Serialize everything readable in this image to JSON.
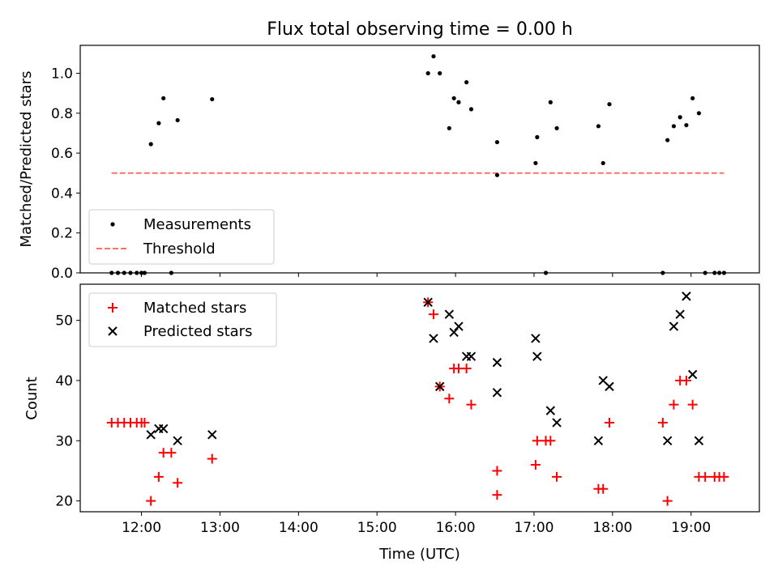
{
  "title": "Flux total observing time = 0.00 h",
  "chart_data": [
    {
      "type": "scatter",
      "ylabel": "Matched/Predicted stars",
      "xlim": [
        11.22,
        19.87
      ],
      "ylim": [
        0.0,
        1.14
      ],
      "yticks": [
        0.0,
        0.2,
        0.4,
        0.6,
        0.8,
        1.0
      ],
      "ytick_labels": [
        "0.0",
        "0.2",
        "0.4",
        "0.6",
        "0.8",
        "1.0"
      ],
      "grid": false,
      "legend_position": "lower-left",
      "series": [
        {
          "name": "Measurements",
          "marker": "dot",
          "color": "#000000",
          "points": [
            [
              11.62,
              0.0
            ],
            [
              11.7,
              0.0
            ],
            [
              11.78,
              0.0
            ],
            [
              11.86,
              0.0
            ],
            [
              11.94,
              0.0
            ],
            [
              12.0,
              0.0
            ],
            [
              12.04,
              0.0
            ],
            [
              12.12,
              0.645
            ],
            [
              12.22,
              0.75
            ],
            [
              12.28,
              0.875
            ],
            [
              12.38,
              0.0
            ],
            [
              12.46,
              0.765
            ],
            [
              12.9,
              0.87
            ],
            [
              15.65,
              1.0
            ],
            [
              15.72,
              1.085
            ],
            [
              15.8,
              1.0
            ],
            [
              15.92,
              0.725
            ],
            [
              15.98,
              0.875
            ],
            [
              16.04,
              0.855
            ],
            [
              16.14,
              0.955
            ],
            [
              16.2,
              0.82
            ],
            [
              16.53,
              0.655
            ],
            [
              16.53,
              0.49
            ],
            [
              17.02,
              0.55
            ],
            [
              17.04,
              0.68
            ],
            [
              17.15,
              0.0
            ],
            [
              17.21,
              0.855
            ],
            [
              17.29,
              0.725
            ],
            [
              17.82,
              0.735
            ],
            [
              17.88,
              0.55
            ],
            [
              17.96,
              0.845
            ],
            [
              18.64,
              0.0
            ],
            [
              18.7,
              0.665
            ],
            [
              18.78,
              0.735
            ],
            [
              18.86,
              0.78
            ],
            [
              18.94,
              0.74
            ],
            [
              19.02,
              0.875
            ],
            [
              19.1,
              0.8
            ],
            [
              19.18,
              0.0
            ],
            [
              19.3,
              0.0
            ],
            [
              19.36,
              0.0
            ],
            [
              19.42,
              0.0
            ]
          ]
        },
        {
          "name": "Threshold",
          "line_style": "dashed",
          "color": "#ff7070",
          "points": [
            [
              11.62,
              0.5
            ],
            [
              19.42,
              0.5
            ]
          ]
        }
      ]
    },
    {
      "type": "scatter",
      "xlabel": "Time (UTC)",
      "ylabel": "Count",
      "xlim": [
        11.22,
        19.87
      ],
      "ylim": [
        18.2,
        56.0
      ],
      "xticks": [
        12,
        13,
        14,
        15,
        16,
        17,
        18,
        19
      ],
      "xtick_labels": [
        "12:00",
        "13:00",
        "14:00",
        "15:00",
        "16:00",
        "17:00",
        "18:00",
        "19:00"
      ],
      "yticks": [
        20,
        30,
        40,
        50
      ],
      "ytick_labels": [
        "20",
        "30",
        "40",
        "50"
      ],
      "grid": false,
      "legend_position": "upper-left",
      "series": [
        {
          "name": "Matched stars",
          "marker": "plus",
          "color": "#ff0000",
          "points": [
            [
              11.62,
              33
            ],
            [
              11.7,
              33
            ],
            [
              11.78,
              33
            ],
            [
              11.86,
              33
            ],
            [
              11.94,
              33
            ],
            [
              12.0,
              33
            ],
            [
              12.04,
              33
            ],
            [
              12.12,
              20
            ],
            [
              12.22,
              24
            ],
            [
              12.28,
              28
            ],
            [
              12.38,
              28
            ],
            [
              12.46,
              23
            ],
            [
              12.9,
              27
            ],
            [
              15.65,
              53
            ],
            [
              15.72,
              51
            ],
            [
              15.8,
              39
            ],
            [
              15.92,
              37
            ],
            [
              15.98,
              42
            ],
            [
              16.04,
              42
            ],
            [
              16.14,
              42
            ],
            [
              16.2,
              36
            ],
            [
              16.53,
              25
            ],
            [
              16.53,
              21
            ],
            [
              17.02,
              26
            ],
            [
              17.04,
              30
            ],
            [
              17.15,
              30
            ],
            [
              17.21,
              30
            ],
            [
              17.29,
              24
            ],
            [
              17.82,
              22
            ],
            [
              17.88,
              22
            ],
            [
              17.96,
              33
            ],
            [
              18.64,
              33
            ],
            [
              18.7,
              20
            ],
            [
              18.78,
              36
            ],
            [
              18.86,
              40
            ],
            [
              18.94,
              40
            ],
            [
              19.02,
              36
            ],
            [
              19.1,
              24
            ],
            [
              19.18,
              24
            ],
            [
              19.3,
              24
            ],
            [
              19.36,
              24
            ],
            [
              19.42,
              24
            ]
          ]
        },
        {
          "name": "Predicted stars",
          "marker": "x",
          "color": "#000000",
          "points": [
            [
              12.12,
              31
            ],
            [
              12.22,
              32
            ],
            [
              12.28,
              32
            ],
            [
              12.46,
              30
            ],
            [
              12.9,
              31
            ],
            [
              15.65,
              53
            ],
            [
              15.72,
              47
            ],
            [
              15.8,
              39
            ],
            [
              15.92,
              51
            ],
            [
              15.98,
              48
            ],
            [
              16.04,
              49
            ],
            [
              16.14,
              44
            ],
            [
              16.2,
              44
            ],
            [
              16.53,
              43
            ],
            [
              16.53,
              38
            ],
            [
              17.02,
              47
            ],
            [
              17.04,
              44
            ],
            [
              17.21,
              35
            ],
            [
              17.29,
              33
            ],
            [
              17.82,
              30
            ],
            [
              17.88,
              40
            ],
            [
              17.96,
              39
            ],
            [
              18.7,
              30
            ],
            [
              18.78,
              49
            ],
            [
              18.86,
              51
            ],
            [
              18.94,
              54
            ],
            [
              19.02,
              41
            ],
            [
              19.1,
              30
            ]
          ]
        }
      ]
    }
  ]
}
